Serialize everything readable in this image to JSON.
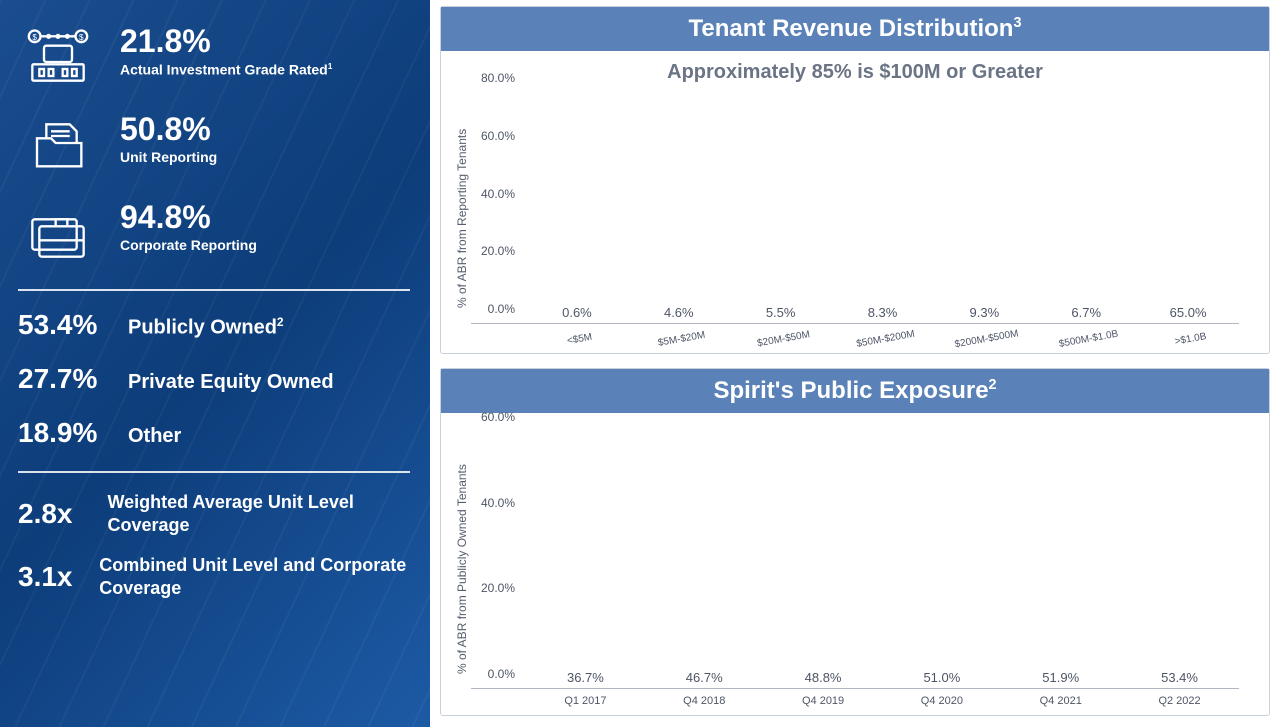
{
  "left": {
    "stats": [
      {
        "value": "21.8%",
        "label": "Actual Investment Grade Rated",
        "sup": "1"
      },
      {
        "value": "50.8%",
        "label": "Unit Reporting",
        "sup": ""
      },
      {
        "value": "94.8%",
        "label": "Corporate Reporting",
        "sup": ""
      }
    ],
    "ownership": [
      {
        "pct": "53.4%",
        "label": "Publicly Owned",
        "sup": "2"
      },
      {
        "pct": "27.7%",
        "label": "Private Equity Owned",
        "sup": ""
      },
      {
        "pct": "18.9%",
        "label": "Other",
        "sup": ""
      }
    ],
    "coverage": [
      {
        "val": "2.8x",
        "label": "Weighted Average Unit Level Coverage"
      },
      {
        "val": "3.1x",
        "label": "Combined Unit Level and Corporate Coverage"
      }
    ]
  },
  "chart1": {
    "type": "bar",
    "title": "Tenant Revenue Distribution",
    "title_sup": "3",
    "subtitle": "Approximately 85% is $100M or Greater",
    "ylabel": "% of ABR from Reporting Tenants",
    "ylim": [
      0,
      80
    ],
    "ytick_step": 20,
    "yticks": [
      "0.0%",
      "20.0%",
      "40.0%",
      "60.0%",
      "80.0%"
    ],
    "categories": [
      "<$5M",
      "$5M-$20M",
      "$20M-$50M",
      "$50M-$200M",
      "$200M-$500M",
      "$500M-$1.0B",
      ">$1.0B"
    ],
    "values": [
      0.6,
      4.6,
      5.5,
      8.3,
      9.3,
      6.7,
      65.0
    ],
    "value_labels": [
      "0.6%",
      "4.6%",
      "5.5%",
      "8.3%",
      "9.3%",
      "6.7%",
      "65.0%"
    ],
    "bar_color": "#5a82b8",
    "title_bg": "#5a82b8",
    "title_color": "#ffffff",
    "subtitle_color": "#6b7485",
    "grid_color": "#b0b6c3",
    "bar_width": 0.6,
    "xlabel_rotation": -10,
    "height_ratio": 0.48
  },
  "chart2": {
    "type": "bar",
    "title": "Spirit's Public Exposure",
    "title_sup": "2",
    "ylabel": "% of ABR from Publicly Owned Tenants",
    "ylim": [
      0,
      60
    ],
    "ytick_step": 20,
    "yticks": [
      "0.0%",
      "20.0%",
      "40.0%",
      "60.0%"
    ],
    "categories": [
      "Q1 2017",
      "Q4 2018",
      "Q4 2019",
      "Q4 2020",
      "Q4 2021",
      "Q2 2022"
    ],
    "values": [
      36.7,
      46.7,
      48.8,
      51.0,
      51.9,
      53.4
    ],
    "value_labels": [
      "36.7%",
      "46.7%",
      "48.8%",
      "51.0%",
      "51.9%",
      "53.4%"
    ],
    "bar_color": "#5a82b8",
    "title_bg": "#5a82b8",
    "title_color": "#ffffff",
    "grid_color": "#b0b6c3",
    "bar_width": 0.6,
    "xlabel_rotation": 0,
    "height_ratio": 0.48
  },
  "colors": {
    "panel_gradient_from": "#1a4d8f",
    "panel_gradient_to": "#1d5aa5",
    "card_border": "#c8d0dd",
    "axis_text": "#4d5566"
  }
}
